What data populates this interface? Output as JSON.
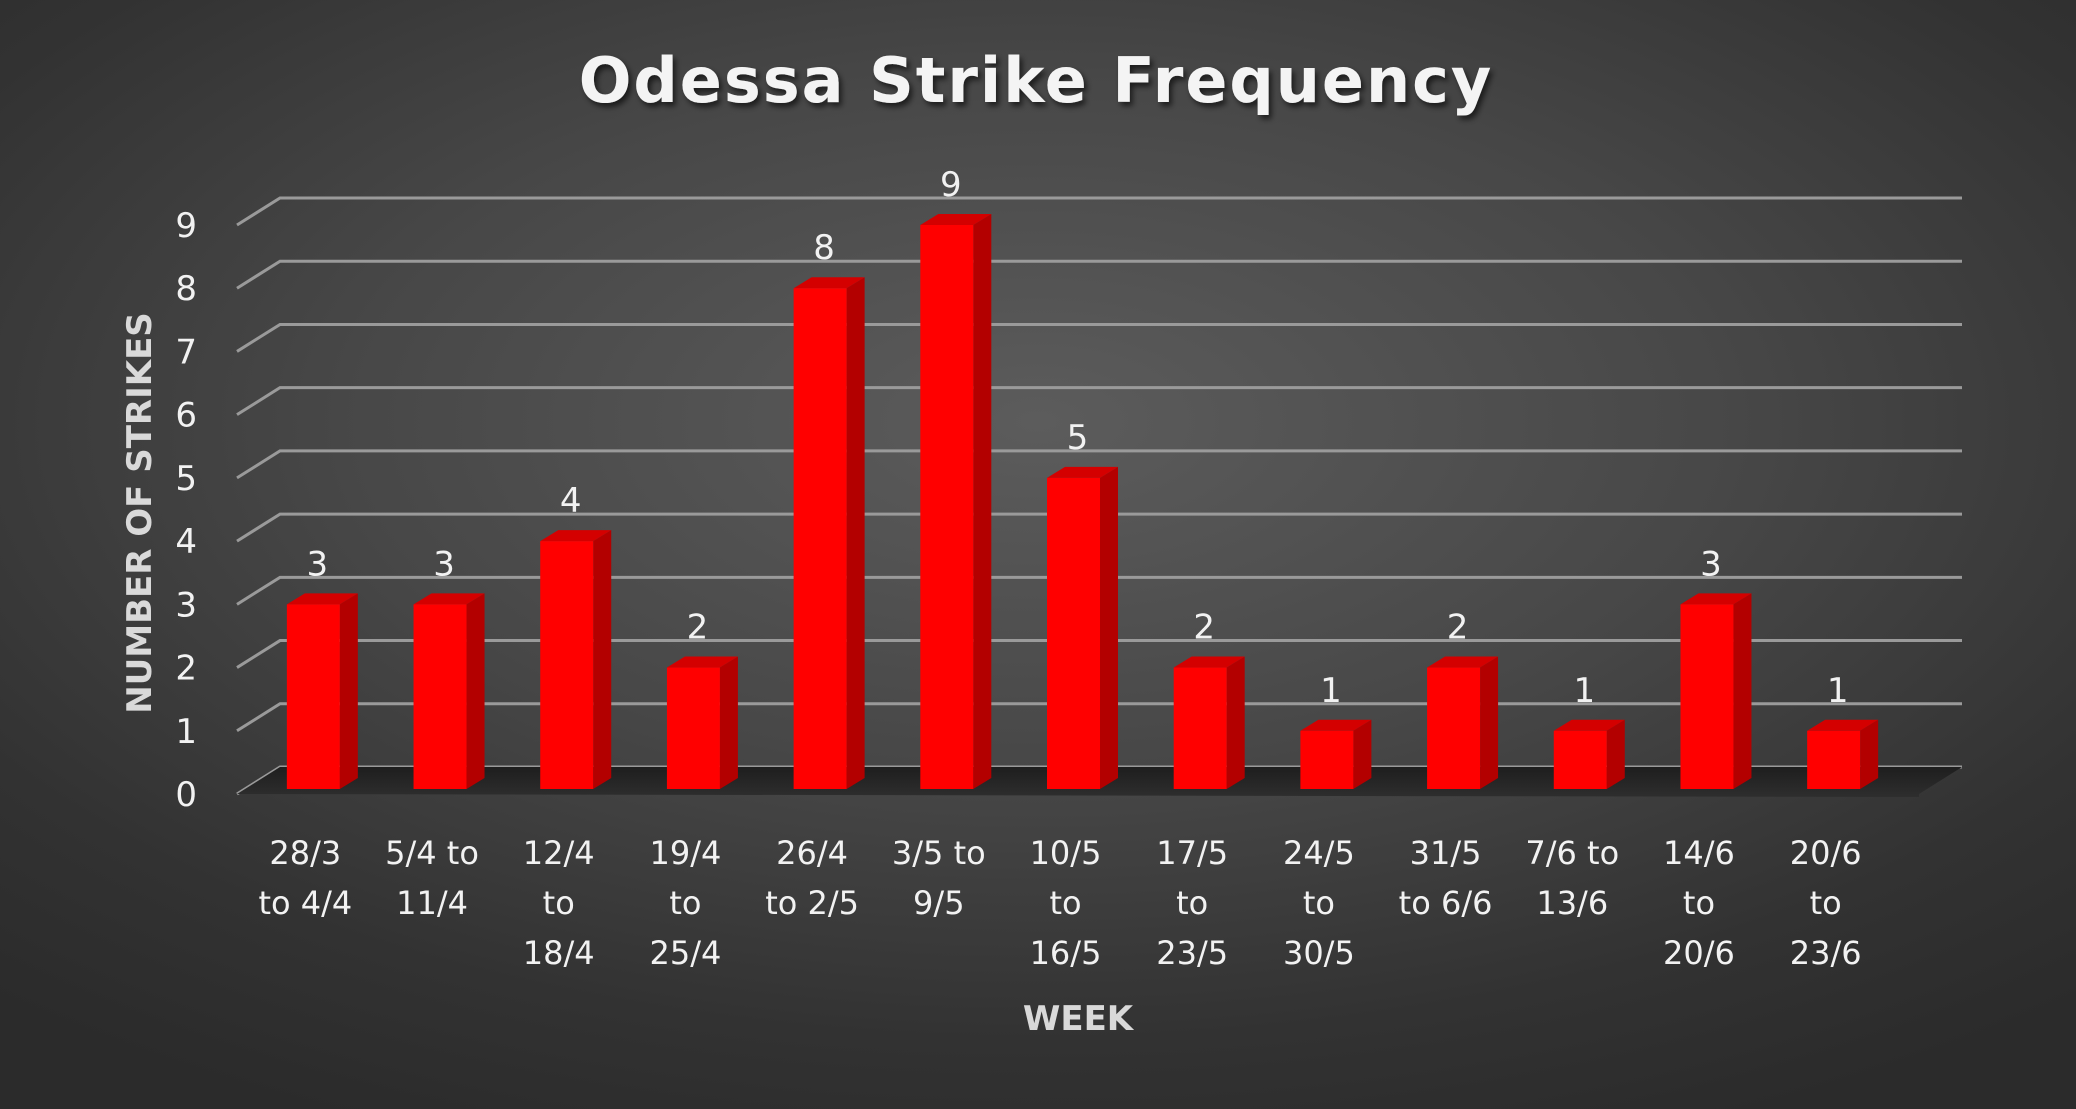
{
  "chart_data": {
    "type": "bar",
    "title": "Odessa Strike Frequency",
    "xlabel": "WEEK",
    "ylabel": "NUMBER OF STRIKES",
    "ylim": [
      0,
      9
    ],
    "yticks": [
      "0",
      "1",
      "2",
      "3",
      "4",
      "5",
      "6",
      "7",
      "8",
      "9"
    ],
    "categories": [
      [
        "28/3",
        "to 4/4"
      ],
      [
        "5/4 to",
        "11/4"
      ],
      [
        "12/4",
        "to",
        "18/4"
      ],
      [
        "19/4",
        "to",
        "25/4"
      ],
      [
        "26/4",
        "to 2/5"
      ],
      [
        "3/5 to",
        "9/5"
      ],
      [
        "10/5",
        "to",
        "16/5"
      ],
      [
        "17/5",
        "to",
        "23/5"
      ],
      [
        "24/5",
        "to",
        "30/5"
      ],
      [
        "31/5",
        "to 6/6"
      ],
      [
        "7/6 to",
        "13/6"
      ],
      [
        "14/6",
        "to",
        "20/6"
      ],
      [
        "20/6",
        "to",
        "23/6"
      ]
    ],
    "values": [
      3,
      3,
      4,
      2,
      8,
      9,
      5,
      2,
      1,
      2,
      1,
      3,
      1
    ],
    "data_labels": true,
    "grid": true,
    "style": "3d-column",
    "colors": {
      "bar_front": "#ff0000",
      "bar_side": "#b30000",
      "bar_top": "#d40000",
      "gridline": "#9a9a9a",
      "text": "#f2f2f2"
    }
  }
}
